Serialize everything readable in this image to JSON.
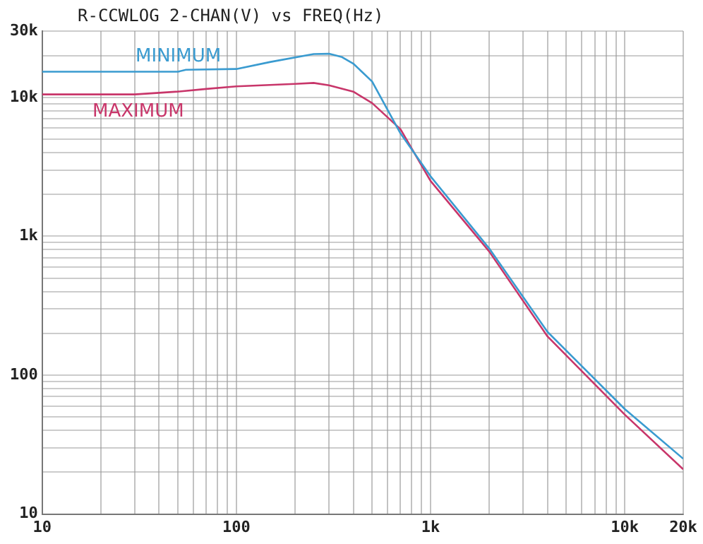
{
  "chart_data": {
    "type": "line",
    "title": "R-CCWLOG 2-CHAN(V) vs FREQ(Hz)",
    "log": "xy",
    "grid": true,
    "legend": false,
    "marker": "none",
    "line_style": "solid",
    "xlim": [
      10,
      20000
    ],
    "ylim": [
      10,
      30000
    ],
    "xticks": [
      10,
      {
        "value": 20,
        "label": null
      },
      {
        "value": 30,
        "label": null
      },
      {
        "value": 40,
        "label": null
      },
      {
        "value": 50,
        "label": null
      },
      {
        "value": 60,
        "label": null
      },
      {
        "value": 70,
        "label": null
      },
      {
        "value": 80,
        "label": null
      },
      {
        "value": 90,
        "label": null
      },
      100,
      {
        "value": 200,
        "label": null
      },
      {
        "value": 300,
        "label": null
      },
      {
        "value": 400,
        "label": null
      },
      {
        "value": 500,
        "label": null
      },
      {
        "value": 600,
        "label": null
      },
      {
        "value": 700,
        "label": null
      },
      {
        "value": 800,
        "label": null
      },
      {
        "value": 900,
        "label": null
      },
      {
        "value": 1000,
        "label": "1k"
      },
      {
        "value": 2000,
        "label": null
      },
      {
        "value": 3000,
        "label": null
      },
      {
        "value": 4000,
        "label": null
      },
      {
        "value": 5000,
        "label": null
      },
      {
        "value": 6000,
        "label": null
      },
      {
        "value": 7000,
        "label": null
      },
      {
        "value": 8000,
        "label": null
      },
      {
        "value": 9000,
        "label": null
      },
      {
        "value": 10000,
        "label": "10k"
      },
      {
        "value": 20000,
        "label": "20k"
      }
    ],
    "yticks": [
      10,
      {
        "value": 20,
        "label": null
      },
      {
        "value": 30,
        "label": null
      },
      {
        "value": 40,
        "label": null
      },
      {
        "value": 50,
        "label": null
      },
      {
        "value": 60,
        "label": null
      },
      {
        "value": 70,
        "label": null
      },
      {
        "value": 80,
        "label": null
      },
      {
        "value": 90,
        "label": null
      },
      100,
      {
        "value": 200,
        "label": null
      },
      {
        "value": 300,
        "label": null
      },
      {
        "value": 400,
        "label": null
      },
      {
        "value": 500,
        "label": null
      },
      {
        "value": 600,
        "label": null
      },
      {
        "value": 700,
        "label": null
      },
      {
        "value": 800,
        "label": null
      },
      {
        "value": 900,
        "label": null
      },
      {
        "value": 1000,
        "label": "1k"
      },
      {
        "value": 2000,
        "label": null
      },
      {
        "value": 3000,
        "label": null
      },
      {
        "value": 4000,
        "label": null
      },
      {
        "value": 5000,
        "label": null
      },
      {
        "value": 6000,
        "label": null
      },
      {
        "value": 7000,
        "label": null
      },
      {
        "value": 8000,
        "label": null
      },
      {
        "value": 9000,
        "label": null
      },
      {
        "value": 10000,
        "label": "10k"
      },
      {
        "value": 20000,
        "label": null
      },
      {
        "value": 30000,
        "label": "30k"
      }
    ],
    "series": [
      {
        "name": "MINIMUM",
        "color": "#3a9bd0",
        "x": [
          10,
          50,
          55,
          100,
          150,
          250,
          300,
          350,
          400,
          500,
          700,
          1000,
          2000,
          4000,
          10000,
          20000
        ],
        "values": [
          15300,
          15300,
          15800,
          16000,
          18000,
          20500,
          20600,
          19500,
          17500,
          13000,
          5500,
          2700,
          820,
          205,
          57,
          25
        ]
      },
      {
        "name": "MAXIMUM",
        "color": "#c8366a",
        "x": [
          10,
          30,
          50,
          70,
          100,
          200,
          250,
          300,
          400,
          500,
          700,
          1000,
          2000,
          4000,
          10000,
          20000
        ],
        "values": [
          10500,
          10500,
          11000,
          11500,
          12000,
          12500,
          12700,
          12200,
          11000,
          9100,
          5900,
          2500,
          780,
          190,
          52,
          21
        ]
      }
    ]
  }
}
